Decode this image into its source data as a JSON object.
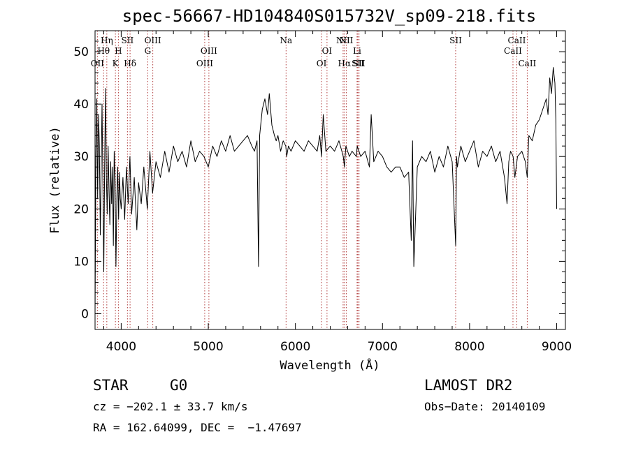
{
  "chart_data": {
    "type": "line",
    "title": "spec-56667-HD104840S015732V_sp09-218.fits",
    "xlabel": "Wavelength (Å)",
    "ylabel": "Flux (relative)",
    "xlim": [
      3700,
      9100
    ],
    "ylim": [
      -3,
      54
    ],
    "xticks": [
      4000,
      5000,
      6000,
      7000,
      8000,
      9000
    ],
    "yticks": [
      0,
      10,
      20,
      30,
      40,
      50
    ],
    "line_color": "#000000",
    "marker_color": "#b03a3a",
    "spectral_lines": [
      {
        "label": "OII",
        "wl": 3727,
        "row": 3
      },
      {
        "label": "Hθ",
        "wl": 3798,
        "row": 2
      },
      {
        "label": "Hη",
        "wl": 3835,
        "row": 1
      },
      {
        "label": "K",
        "wl": 3934,
        "row": 3
      },
      {
        "label": "H",
        "wl": 3968,
        "row": 2
      },
      {
        "label": "SII",
        "wl": 4072,
        "row": 1
      },
      {
        "label": "Hδ",
        "wl": 4102,
        "row": 3
      },
      {
        "label": "G",
        "wl": 4305,
        "row": 2
      },
      {
        "label": "OIII",
        "wl": 4363,
        "row": 1
      },
      {
        "label": "OIII",
        "wl": 4959,
        "row": 3
      },
      {
        "label": "OIII",
        "wl": 5007,
        "row": 2
      },
      {
        "label": "Na",
        "wl": 5893,
        "row": 1
      },
      {
        "label": "OI",
        "wl": 6300,
        "row": 3
      },
      {
        "label": "OI",
        "wl": 6363,
        "row": 2
      },
      {
        "label": "NII",
        "wl": 6548,
        "row": 1
      },
      {
        "label": "Hα",
        "wl": 6563,
        "row": 3
      },
      {
        "label": "NII",
        "wl": 6584,
        "row": 1
      },
      {
        "label": "Li",
        "wl": 6708,
        "row": 2
      },
      {
        "label": "SII",
        "wl": 6717,
        "row": 3
      },
      {
        "label": "SII",
        "wl": 6731,
        "row": 3
      },
      {
        "label": "SII",
        "wl": 7840,
        "row": 1
      },
      {
        "label": "CaII",
        "wl": 8498,
        "row": 2
      },
      {
        "label": "CaII",
        "wl": 8542,
        "row": 1
      },
      {
        "label": "CaII",
        "wl": 8662,
        "row": 3
      }
    ],
    "series": [
      {
        "x": [
          3700,
          3710,
          3720,
          3730,
          3740,
          3750,
          3760,
          3770,
          3780,
          3790,
          3800,
          3810,
          3820,
          3830,
          3840,
          3850,
          3860,
          3870,
          3880,
          3890,
          3900,
          3910,
          3920,
          3930,
          3940,
          3950,
          3960,
          3970,
          3980,
          3990,
          4000,
          4020,
          4040,
          4060,
          4080,
          4100,
          4120,
          4150,
          4180,
          4200,
          4230,
          4260,
          4300,
          4330,
          4360,
          4400,
          4450,
          4500,
          4550,
          4600,
          4650,
          4700,
          4750,
          4800,
          4850,
          4900,
          4950,
          5000,
          5050,
          5100,
          5150,
          5200,
          5250,
          5300,
          5350,
          5400,
          5450,
          5500,
          5530,
          5560,
          5577,
          5590,
          5620,
          5650,
          5680,
          5700,
          5730,
          5760,
          5780,
          5800,
          5830,
          5860,
          5890,
          5900,
          5920,
          5950,
          6000,
          6050,
          6100,
          6150,
          6200,
          6250,
          6280,
          6300,
          6320,
          6350,
          6400,
          6450,
          6500,
          6550,
          6563,
          6580,
          6620,
          6650,
          6700,
          6710,
          6750,
          6800,
          6850,
          6870,
          6900,
          6950,
          7000,
          7050,
          7100,
          7150,
          7200,
          7250,
          7300,
          7330,
          7345,
          7360,
          7400,
          7450,
          7500,
          7550,
          7600,
          7650,
          7700,
          7750,
          7800,
          7840,
          7850,
          7860,
          7900,
          7950,
          8000,
          8050,
          8100,
          8150,
          8200,
          8250,
          8300,
          8350,
          8400,
          8430,
          8450,
          8470,
          8500,
          8520,
          8550,
          8600,
          8640,
          8662,
          8680,
          8720,
          8760,
          8800,
          8840,
          8880,
          8900,
          8920,
          8940,
          8960,
          8980,
          8990,
          9000
        ],
        "y": [
          0,
          30,
          41,
          22,
          38,
          32,
          15,
          27,
          40,
          25,
          8,
          28,
          43,
          26,
          19,
          32,
          24,
          17,
          29,
          21,
          28,
          13,
          31,
          25,
          9,
          22,
          28,
          18,
          27,
          22,
          20,
          26,
          18,
          28,
          21,
          30,
          19,
          26,
          16,
          25,
          21,
          28,
          20,
          31,
          23,
          29,
          26,
          31,
          27,
          32,
          29,
          31,
          28,
          33,
          29,
          31,
          30,
          28,
          32,
          30,
          33,
          31,
          34,
          31,
          32,
          33,
          34,
          32,
          31,
          33,
          9,
          34,
          39,
          41,
          38,
          42,
          36,
          34,
          33,
          34,
          31,
          33,
          32,
          30,
          32,
          31,
          33,
          32,
          31,
          33,
          32,
          31,
          34,
          30,
          38,
          31,
          32,
          31,
          33,
          30,
          28,
          32,
          30,
          31,
          30,
          32,
          30,
          31,
          28,
          38,
          29,
          31,
          30,
          28,
          27,
          28,
          28,
          26,
          27,
          14,
          33,
          9,
          28,
          30,
          29,
          31,
          27,
          30,
          28,
          32,
          29,
          13,
          30,
          28,
          32,
          29,
          31,
          33,
          28,
          31,
          30,
          32,
          29,
          31,
          26,
          21,
          29,
          31,
          30,
          26,
          30,
          31,
          29,
          26,
          34,
          33,
          36,
          37,
          39,
          41,
          38,
          45,
          42,
          47,
          44,
          37,
          20
        ]
      }
    ]
  },
  "info": {
    "class_label": "STAR",
    "subclass_label": "G0",
    "survey": "LAMOST DR2",
    "cz": "cz = −202.1 ± 33.7 km/s",
    "obs_date": "Obs−Date: 20140109",
    "coords": "RA = 162.64099, DEC =  −1.47697"
  }
}
